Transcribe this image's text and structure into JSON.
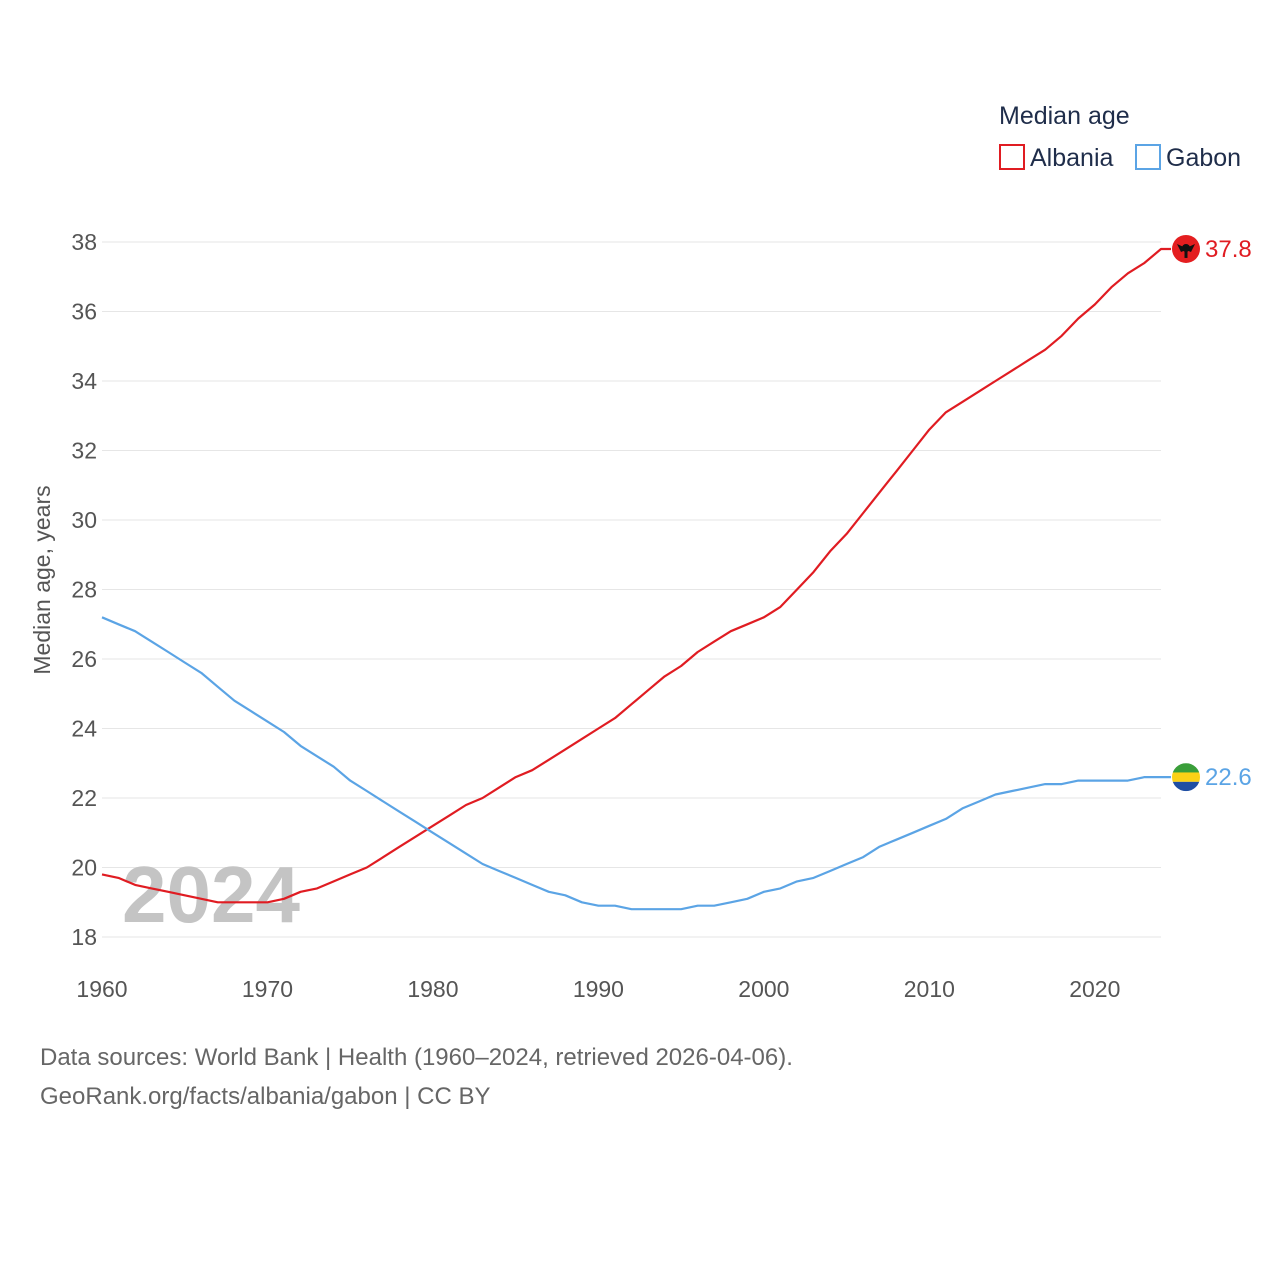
{
  "chart_data": {
    "type": "line",
    "legend_title": "Median age",
    "legend_position": "top-right",
    "ylabel": "Median age, years",
    "xlabel": "",
    "xlim": [
      1960,
      2024
    ],
    "ylim": [
      18,
      38
    ],
    "yticks": [
      18,
      20,
      22,
      24,
      26,
      28,
      30,
      32,
      34,
      36,
      38
    ],
    "xticks": [
      1960,
      1970,
      1980,
      1990,
      2000,
      2010,
      2020
    ],
    "grid": true,
    "year_label": "2024",
    "series": [
      {
        "name": "Albania",
        "color": "#e01c22",
        "end_label": "37.8",
        "x": [
          1960,
          1961,
          1962,
          1963,
          1964,
          1965,
          1966,
          1967,
          1968,
          1969,
          1970,
          1971,
          1972,
          1973,
          1974,
          1975,
          1976,
          1977,
          1978,
          1979,
          1980,
          1981,
          1982,
          1983,
          1984,
          1985,
          1986,
          1987,
          1988,
          1989,
          1990,
          1991,
          1992,
          1993,
          1994,
          1995,
          1996,
          1997,
          1998,
          1999,
          2000,
          2001,
          2002,
          2003,
          2004,
          2005,
          2006,
          2007,
          2008,
          2009,
          2010,
          2011,
          2012,
          2013,
          2014,
          2015,
          2016,
          2017,
          2018,
          2019,
          2020,
          2021,
          2022,
          2023,
          2024
        ],
        "values": [
          19.8,
          19.7,
          19.5,
          19.4,
          19.3,
          19.2,
          19.1,
          19.0,
          19.0,
          19.0,
          19.0,
          19.1,
          19.3,
          19.4,
          19.6,
          19.8,
          20.0,
          20.3,
          20.6,
          20.9,
          21.2,
          21.5,
          21.8,
          22.0,
          22.3,
          22.6,
          22.8,
          23.1,
          23.4,
          23.7,
          24.0,
          24.3,
          24.7,
          25.1,
          25.5,
          25.8,
          26.2,
          26.5,
          26.8,
          27.0,
          27.2,
          27.5,
          28.0,
          28.5,
          29.1,
          29.6,
          30.2,
          30.8,
          31.4,
          32.0,
          32.6,
          33.1,
          33.4,
          33.7,
          34.0,
          34.3,
          34.6,
          34.9,
          35.3,
          35.8,
          36.2,
          36.7,
          37.1,
          37.4,
          37.8
        ]
      },
      {
        "name": "Gabon",
        "color": "#5ba4e5",
        "end_label": "22.6",
        "x": [
          1960,
          1961,
          1962,
          1963,
          1964,
          1965,
          1966,
          1967,
          1968,
          1969,
          1970,
          1971,
          1972,
          1973,
          1974,
          1975,
          1976,
          1977,
          1978,
          1979,
          1980,
          1981,
          1982,
          1983,
          1984,
          1985,
          1986,
          1987,
          1988,
          1989,
          1990,
          1991,
          1992,
          1993,
          1994,
          1995,
          1996,
          1997,
          1998,
          1999,
          2000,
          2001,
          2002,
          2003,
          2004,
          2005,
          2006,
          2007,
          2008,
          2009,
          2010,
          2011,
          2012,
          2013,
          2014,
          2015,
          2016,
          2017,
          2018,
          2019,
          2020,
          2021,
          2022,
          2023,
          2024
        ],
        "values": [
          27.2,
          27.0,
          26.8,
          26.5,
          26.2,
          25.9,
          25.6,
          25.2,
          24.8,
          24.5,
          24.2,
          23.9,
          23.5,
          23.2,
          22.9,
          22.5,
          22.2,
          21.9,
          21.6,
          21.3,
          21.0,
          20.7,
          20.4,
          20.1,
          19.9,
          19.7,
          19.5,
          19.3,
          19.2,
          19.0,
          18.9,
          18.9,
          18.8,
          18.8,
          18.8,
          18.8,
          18.9,
          18.9,
          19.0,
          19.1,
          19.3,
          19.4,
          19.6,
          19.7,
          19.9,
          20.1,
          20.3,
          20.6,
          20.8,
          21.0,
          21.2,
          21.4,
          21.7,
          21.9,
          22.1,
          22.2,
          22.3,
          22.4,
          22.4,
          22.5,
          22.5,
          22.5,
          22.5,
          22.6,
          22.6
        ]
      }
    ]
  },
  "source": {
    "line1": "Data sources: World Bank | Health (1960–2024, retrieved 2026-04-06).",
    "line2": "GeoRank.org/facts/albania/gabon | CC BY"
  },
  "colors": {
    "albania_flag": "#e41e20",
    "gabon_flag_top": "#3a9e3a",
    "gabon_flag_mid": "#fcd116",
    "gabon_flag_bottom": "#1f4ea3"
  }
}
